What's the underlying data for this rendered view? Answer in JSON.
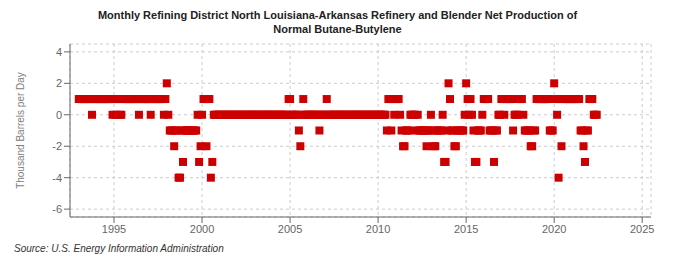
{
  "chart_data": {
    "type": "scatter",
    "title": "Monthly Refining District North Louisiana-Arkansas Refinery and Blender Net Production of\nNormal Butane-Butylene",
    "y_label": "Thousand Barrels per Day",
    "source": "Source: U.S. Energy Information Administration",
    "color": "#cc0000",
    "marker": "square",
    "grid": true,
    "xlim": [
      1992.5,
      2025.5
    ],
    "xticks": [
      1995,
      2000,
      2005,
      2010,
      2015,
      2020,
      2025
    ],
    "ylim": [
      -6.5,
      4.5
    ],
    "yticks": [
      -6,
      -4,
      -2,
      0,
      2,
      4
    ],
    "x": [
      1993.0,
      1993.083,
      1993.167,
      1993.25,
      1993.333,
      1993.417,
      1993.5,
      1993.583,
      1993.667,
      1993.75,
      1993.833,
      1993.917,
      1994.0,
      1994.083,
      1994.167,
      1994.25,
      1994.333,
      1994.417,
      1994.5,
      1994.583,
      1994.667,
      1994.75,
      1994.833,
      1994.917,
      1995.0,
      1995.083,
      1995.167,
      1995.25,
      1995.333,
      1995.417,
      1995.5,
      1995.583,
      1995.667,
      1995.75,
      1995.833,
      1995.917,
      1996.0,
      1996.083,
      1996.167,
      1996.25,
      1996.333,
      1996.417,
      1996.5,
      1996.583,
      1996.667,
      1996.75,
      1996.833,
      1996.917,
      1997.0,
      1997.083,
      1997.167,
      1997.25,
      1997.333,
      1997.417,
      1997.5,
      1997.583,
      1997.667,
      1997.75,
      1997.833,
      1997.917,
      1998.0,
      1998.083,
      1998.167,
      1998.25,
      1998.333,
      1998.417,
      1998.5,
      1998.583,
      1998.667,
      1998.75,
      1998.833,
      1998.917,
      1999.0,
      1999.083,
      1999.167,
      1999.25,
      1999.333,
      1999.417,
      1999.5,
      1999.583,
      1999.667,
      1999.75,
      1999.833,
      1999.917,
      2000.0,
      2000.083,
      2000.167,
      2000.25,
      2000.333,
      2000.417,
      2000.5,
      2000.583,
      2000.667,
      2000.75,
      2000.833,
      2000.917,
      2001.0,
      2001.083,
      2001.167,
      2001.25,
      2001.333,
      2001.417,
      2001.5,
      2001.583,
      2001.667,
      2001.75,
      2001.833,
      2001.917,
      2002.0,
      2002.083,
      2002.167,
      2002.25,
      2002.333,
      2002.417,
      2002.5,
      2002.583,
      2002.667,
      2002.75,
      2002.833,
      2002.917,
      2003.0,
      2003.083,
      2003.167,
      2003.25,
      2003.333,
      2003.417,
      2003.5,
      2003.583,
      2003.667,
      2003.75,
      2003.833,
      2003.917,
      2004.0,
      2004.083,
      2004.167,
      2004.25,
      2004.333,
      2004.417,
      2004.5,
      2004.583,
      2004.667,
      2004.75,
      2004.833,
      2004.917,
      2005.0,
      2005.083,
      2005.167,
      2005.25,
      2005.333,
      2005.417,
      2005.5,
      2005.583,
      2005.667,
      2005.75,
      2005.833,
      2005.917,
      2006.0,
      2006.083,
      2006.167,
      2006.25,
      2006.333,
      2006.417,
      2006.5,
      2006.583,
      2006.667,
      2006.75,
      2006.833,
      2006.917,
      2007.0,
      2007.083,
      2007.167,
      2007.25,
      2007.333,
      2007.417,
      2007.5,
      2007.583,
      2007.667,
      2007.75,
      2007.833,
      2007.917,
      2008.0,
      2008.083,
      2008.167,
      2008.25,
      2008.333,
      2008.417,
      2008.5,
      2008.583,
      2008.667,
      2008.75,
      2008.833,
      2008.917,
      2009.0,
      2009.083,
      2009.167,
      2009.25,
      2009.333,
      2009.417,
      2009.5,
      2009.583,
      2009.667,
      2009.75,
      2009.833,
      2009.917,
      2010.0,
      2010.083,
      2010.167,
      2010.25,
      2010.333,
      2010.417,
      2010.5,
      2010.583,
      2010.667,
      2010.75,
      2010.833,
      2010.917,
      2011.0,
      2011.083,
      2011.167,
      2011.25,
      2011.333,
      2011.417,
      2011.5,
      2011.583,
      2011.667,
      2011.75,
      2011.833,
      2011.917,
      2012.0,
      2012.083,
      2012.167,
      2012.25,
      2012.333,
      2012.417,
      2012.5,
      2012.583,
      2012.667,
      2012.75,
      2012.833,
      2012.917,
      2013.0,
      2013.083,
      2013.167,
      2013.25,
      2013.333,
      2013.417,
      2013.5,
      2013.583,
      2013.667,
      2013.75,
      2013.833,
      2013.917,
      2014.0,
      2014.083,
      2014.167,
      2014.25,
      2014.333,
      2014.417,
      2014.5,
      2014.583,
      2014.667,
      2014.75,
      2014.833,
      2014.917,
      2015.0,
      2015.083,
      2015.167,
      2015.25,
      2015.333,
      2015.417,
      2015.5,
      2015.583,
      2015.667,
      2015.75,
      2015.833,
      2015.917,
      2016.0,
      2016.083,
      2016.167,
      2016.25,
      2016.333,
      2016.417,
      2016.5,
      2016.583,
      2016.667,
      2016.75,
      2016.833,
      2016.917,
      2017.0,
      2017.083,
      2017.167,
      2017.25,
      2017.333,
      2017.417,
      2017.5,
      2017.583,
      2017.667,
      2017.75,
      2017.833,
      2017.917,
      2018.0,
      2018.083,
      2018.167,
      2018.25,
      2018.333,
      2018.417,
      2018.5,
      2018.583,
      2018.667,
      2018.75,
      2018.833,
      2018.917,
      2019.0,
      2019.083,
      2019.167,
      2019.25,
      2019.333,
      2019.417,
      2019.5,
      2019.583,
      2019.667,
      2019.75,
      2019.833,
      2019.917,
      2020.0,
      2020.083,
      2020.167,
      2020.25,
      2020.333,
      2020.417,
      2020.5,
      2020.583,
      2020.667,
      2020.75,
      2020.833,
      2020.917,
      2021.0,
      2021.083,
      2021.167,
      2021.25,
      2021.333,
      2021.417,
      2021.5,
      2021.583,
      2021.667,
      2021.75,
      2021.833,
      2021.917,
      2022.0,
      2022.083,
      2022.167,
      2022.25,
      2022.333,
      2022.417
    ],
    "values": [
      1,
      1,
      1,
      1,
      1,
      1,
      1,
      1,
      1,
      0,
      1,
      1,
      1,
      1,
      1,
      1,
      1,
      1,
      1,
      1,
      1,
      1,
      1,
      0,
      1,
      0,
      1,
      1,
      0,
      0,
      1,
      1,
      1,
      1,
      1,
      1,
      1,
      1,
      1,
      1,
      1,
      0,
      1,
      1,
      1,
      1,
      1,
      1,
      1,
      0,
      1,
      1,
      1,
      1,
      1,
      1,
      1,
      1,
      0,
      1,
      2,
      0,
      -1,
      -1,
      -1,
      -2,
      -1,
      -1,
      -4,
      -4,
      -1,
      -3,
      -1,
      -1,
      -1,
      -1,
      -1,
      -1,
      -1,
      -1,
      -1,
      0,
      -3,
      -2,
      0,
      1,
      1,
      -2,
      1,
      1,
      -4,
      -3,
      0,
      0,
      0,
      0,
      0,
      0,
      0,
      0,
      0,
      0,
      0,
      0,
      0,
      0,
      0,
      0,
      0,
      0,
      0,
      0,
      0,
      0,
      0,
      0,
      0,
      0,
      0,
      0,
      0,
      0,
      0,
      0,
      0,
      0,
      0,
      0,
      0,
      0,
      0,
      0,
      0,
      0,
      0,
      0,
      0,
      0,
      0,
      0,
      0,
      0,
      0,
      1,
      1,
      0,
      0,
      0,
      0,
      0,
      -1,
      -2,
      0,
      1,
      0,
      0,
      0,
      0,
      0,
      0,
      0,
      0,
      0,
      0,
      -1,
      0,
      0,
      0,
      0,
      1,
      0,
      0,
      0,
      0,
      0,
      0,
      0,
      0,
      0,
      0,
      0,
      0,
      0,
      0,
      0,
      0,
      0,
      0,
      0,
      0,
      0,
      0,
      0,
      0,
      0,
      0,
      0,
      0,
      0,
      0,
      0,
      0,
      0,
      0,
      0,
      0,
      0,
      0,
      0,
      0,
      -1,
      1,
      1,
      -1,
      1,
      0,
      1,
      1,
      1,
      0,
      -1,
      -2,
      -2,
      -1,
      -1,
      -1,
      0,
      0,
      0,
      0,
      -1,
      0,
      -1,
      -1,
      -1,
      -1,
      -1,
      -2,
      -1,
      -1,
      0,
      -1,
      -2,
      -2,
      -1,
      -1,
      -1,
      -1,
      0,
      -3,
      -3,
      -1,
      2,
      1,
      -1,
      -1,
      -2,
      -2,
      -1,
      -1,
      -1,
      -1,
      -1,
      0,
      2,
      1,
      0,
      1,
      0,
      -1,
      -3,
      -3,
      -1,
      -1,
      -1,
      0,
      1,
      1,
      1,
      1,
      -1,
      -1,
      -1,
      -3,
      -1,
      -1,
      0,
      0,
      1,
      1,
      0,
      1,
      1,
      1,
      1,
      1,
      -1,
      0,
      0,
      0,
      1,
      1,
      1,
      0,
      -1,
      -1,
      -1,
      -1,
      -2,
      -2,
      -1,
      -1,
      1,
      1,
      1,
      1,
      1,
      1,
      1,
      1,
      1,
      -1,
      -1,
      -1,
      2,
      1,
      0,
      -4,
      1,
      -2,
      1,
      1,
      1,
      1,
      1,
      1,
      1,
      1,
      1,
      1,
      1,
      1,
      -1,
      -1,
      -2,
      -3,
      -1,
      -1,
      1,
      1,
      1,
      0,
      0,
      0
    ]
  }
}
